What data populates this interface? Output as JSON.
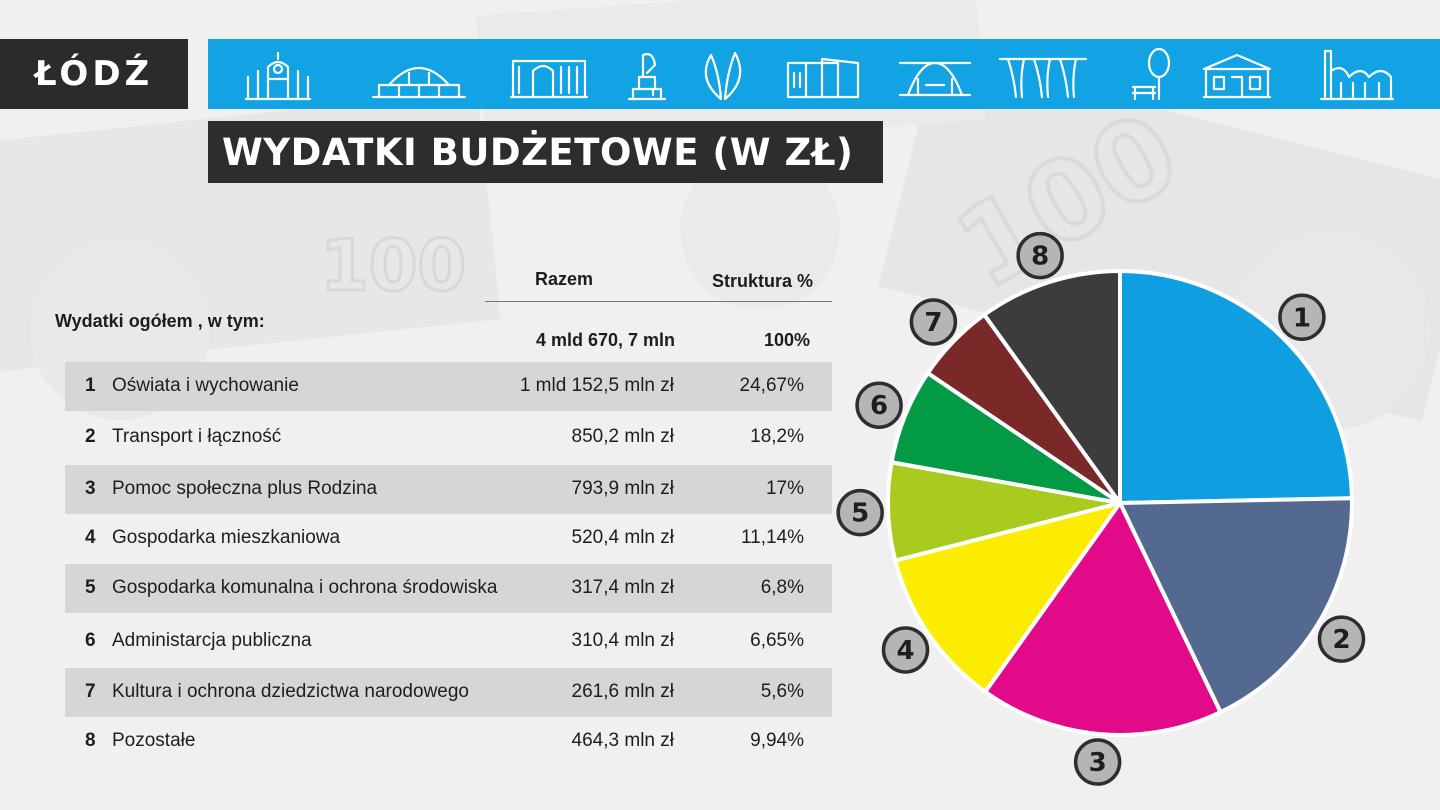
{
  "header": {
    "logo_text": "ŁÓDŹ",
    "icons": [
      "market-hall-icon",
      "railway-station-icon",
      "factory-gate-icon",
      "monument-icon",
      "leaf-sculpture-icon",
      "gallery-building-icon",
      "bridge-icon",
      "arcade-icon",
      "park-bench-icon",
      "theater-building-icon",
      "chimney-factory-icon"
    ]
  },
  "title": "WYDATKI BUDŻETOWE (W ZŁ)",
  "table": {
    "col_razem": "Razem",
    "col_struktura": "Struktura %",
    "total_label": "Wydatki ogółem , w tym:",
    "total_amount": "4 mld 670, 7 mln",
    "total_pct": "100%",
    "rows": [
      {
        "num": "1",
        "name": "Oświata i wychowanie",
        "amount": "1 mld 152,5 mln zł",
        "pct": "24,67%"
      },
      {
        "num": "2",
        "name": "Transport i łączność",
        "amount": "850,2 mln zł",
        "pct": "18,2%"
      },
      {
        "num": "3",
        "name": "Pomoc społeczna plus Rodzina",
        "amount": "793,9 mln zł",
        "pct": "17%"
      },
      {
        "num": "4",
        "name": "Gospodarka mieszkaniowa",
        "amount": "520,4 mln zł",
        "pct": "11,14%"
      },
      {
        "num": "5",
        "name": "Gospodarka komunalna i ochrona środowiska",
        "amount": "317,4 mln zł",
        "pct": "6,8%"
      },
      {
        "num": "6",
        "name": "Administarcja publiczna",
        "amount": "310,4 mln zł",
        "pct": "6,65%"
      },
      {
        "num": "7",
        "name": "Kultura i ochrona dziedzictwa narodowego",
        "amount": "261,6 mln zł",
        "pct": "5,6%"
      },
      {
        "num": "8",
        "name": "Pozostałe",
        "amount": "464,3 mln zł",
        "pct": "9,94%"
      }
    ]
  },
  "colors": {
    "header_blue": "#11a3e4",
    "dark": "#2d2d2d",
    "row_shade": "#d6d6d6",
    "marker_fill": "#b5b5b5"
  },
  "chart_data": {
    "type": "pie",
    "title": "",
    "start_angle_deg": 0,
    "direction": "clockwise",
    "categories": [
      "1",
      "2",
      "3",
      "4",
      "5",
      "6",
      "7",
      "8"
    ],
    "values": [
      24.67,
      18.2,
      17,
      11.14,
      6.8,
      6.65,
      5.6,
      9.94
    ],
    "colors": [
      "#0f9fe0",
      "#54698f",
      "#e20a89",
      "#fcec00",
      "#a8cb1e",
      "#039a45",
      "#7a2828",
      "#3c3c3c"
    ]
  }
}
